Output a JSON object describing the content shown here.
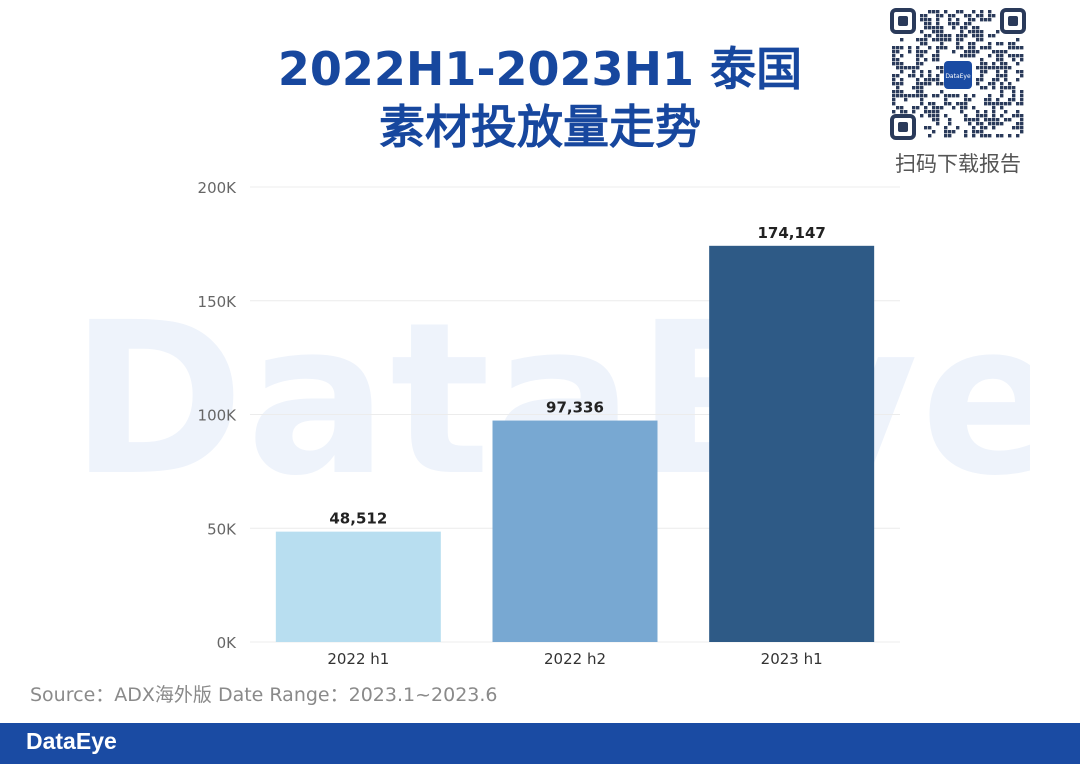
{
  "header": {
    "title_line1": "2022H1-2023H1 泰国",
    "title_line2": "素材投放量走势"
  },
  "watermark_text": "DataEye",
  "qr": {
    "caption": "扫码下载报告",
    "logo_text": "DataEye"
  },
  "source_note": "Source：ADX海外版 Date Range：2023.1~2023.6",
  "footer": {
    "brand": "DataEye",
    "color": "#1a4ba3"
  },
  "chart_data": {
    "type": "bar",
    "categories": [
      "2022 h1",
      "2022 h2",
      "2023 h1"
    ],
    "values": [
      48512,
      97336,
      174147
    ],
    "data_labels": [
      "48,512",
      "97,336",
      "174,147"
    ],
    "bar_colors": [
      "#b8def0",
      "#78a8d2",
      "#2e5a86"
    ],
    "ylim": [
      0,
      200000
    ],
    "yticks": [
      0,
      50000,
      100000,
      150000,
      200000
    ],
    "ytick_labels": [
      "0K",
      "50K",
      "100K",
      "150K",
      "200K"
    ],
    "grid": true,
    "legend": "none"
  }
}
